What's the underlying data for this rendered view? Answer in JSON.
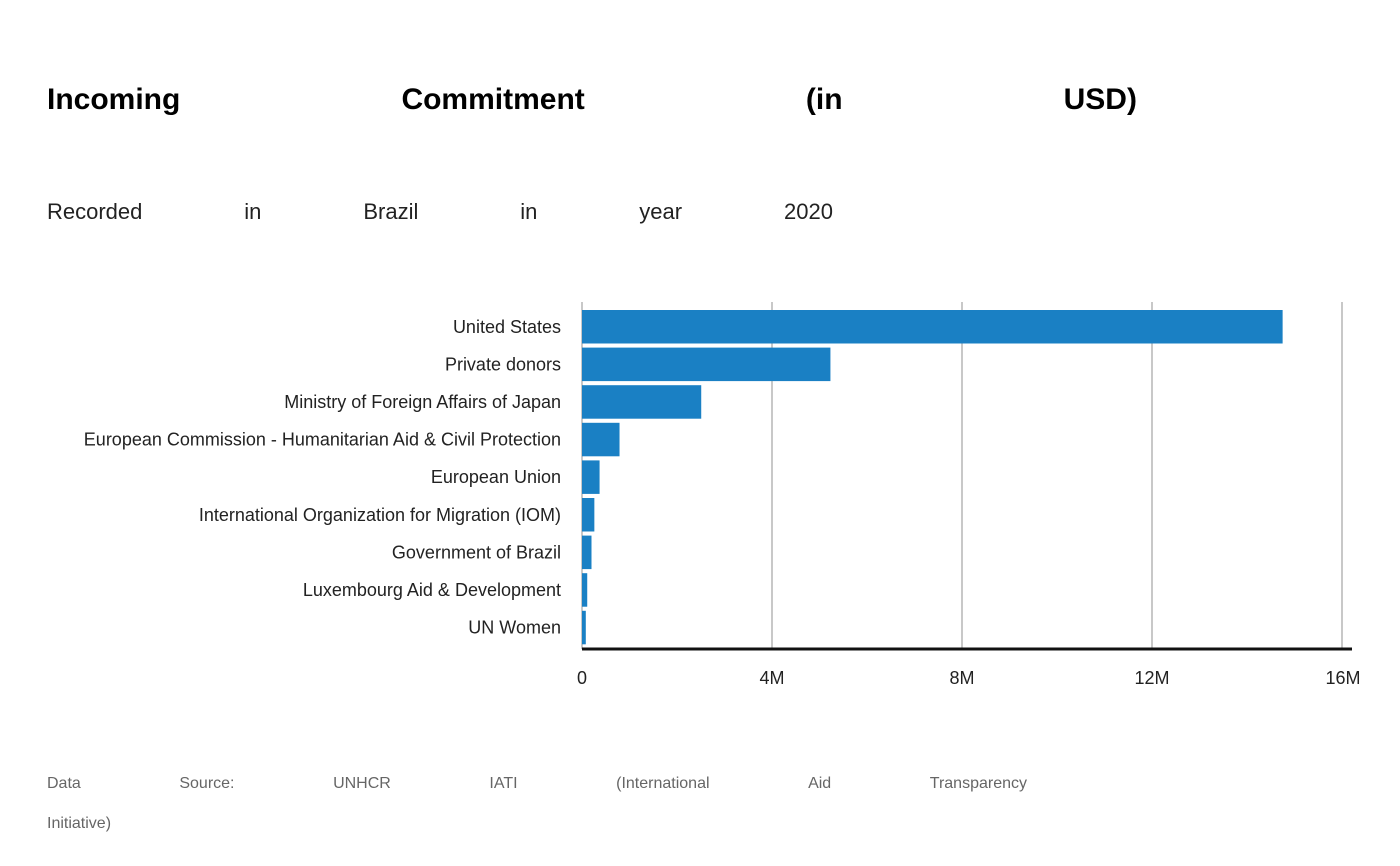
{
  "title_words": [
    "Incoming",
    "Commitment",
    "(in",
    "USD)"
  ],
  "subtitle_words": [
    "Recorded",
    "in",
    "Brazil",
    "in",
    "year",
    "2020"
  ],
  "source_words_line1": [
    "Data",
    "Source:",
    "UNHCR",
    "IATI",
    "(International",
    "Aid",
    "Transparency"
  ],
  "source_words_line2": [
    "Initiative)"
  ],
  "colors": {
    "bar": "#1a80c4",
    "grid": "#c8c8c8",
    "axis": "#111111"
  },
  "chart_data": {
    "type": "bar",
    "orientation": "horizontal",
    "categories": [
      "United States",
      "Private donors",
      "Ministry of Foreign Affairs of Japan",
      "European Commission - Humanitarian Aid & Civil Protection",
      "European Union",
      "International Organization for Migration (IOM)",
      "Government of Brazil",
      "Luxembourg Aid & Development",
      "UN Women"
    ],
    "values": [
      14750000,
      5230000,
      2510000,
      790000,
      370000,
      260000,
      200000,
      110000,
      80000
    ],
    "xlim": [
      0,
      16000000
    ],
    "xticks": [
      0,
      4000000,
      8000000,
      12000000,
      16000000
    ],
    "xtick_labels": [
      "0",
      "4M",
      "8M",
      "12M",
      "16M"
    ],
    "grid": true
  }
}
